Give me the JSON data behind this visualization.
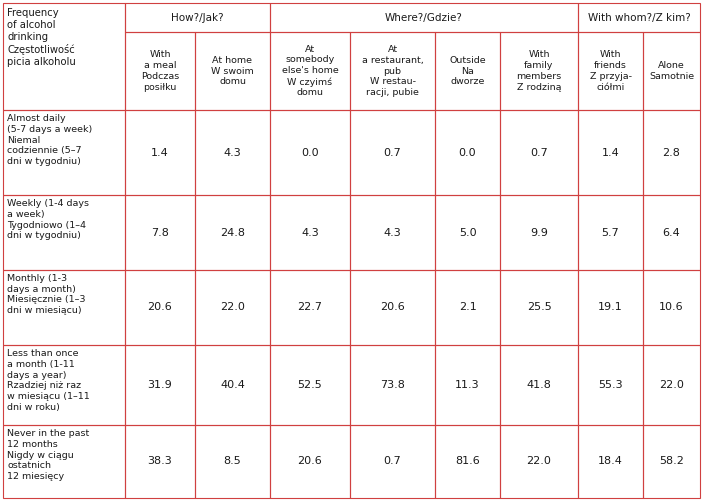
{
  "col_group_labels": [
    "How?/Jak?",
    "Where?/Gdzie?",
    "With whom?/Z kim?"
  ],
  "col_group_spans": [
    2,
    4,
    3
  ],
  "col_headers": [
    "With\na meal\nPodczas\nposiłku",
    "At home\nW swoim\ndomu",
    "At\nsomebody\nelse's home\nW czyimś\ndomu",
    "At\na restaurant,\npub\nW restau-\nracji, pubie",
    "Outside\nNa\ndworze",
    "With\nfamily\nmembers\nZ rodziną",
    "With\nfriends\nZ przyja-\nciółmi",
    "Alone\nSamotnie"
  ],
  "row_header_label": "Frequency\nof alcohol\ndrinking\nCzęstotliwość\npicia alkoholu",
  "row_headers": [
    "Almost daily\n(5-7 days a week)\nNiemal\ncodziennie (5–7\ndni w tygodniu)",
    "Weekly (1-4 days\na week)\nTygodniowo (1–4\ndni w tygodniu)",
    "Monthly (1-3\ndays a month)\nMiesięcznie (1–3\ndni w miesiącu)",
    "Less than once\na month (1-11\ndays a year)\nRzadziej niż raz\nw miesiącu (1–11\ndni w roku)",
    "Never in the past\n12 months\nNigdy w ciągu\nostatnich\n12 miesięcy"
  ],
  "data": [
    [
      "1.4",
      "4.3",
      "0.0",
      "0.7",
      "0.0",
      "0.7",
      "1.4",
      "2.8"
    ],
    [
      "7.8",
      "24.8",
      "4.3",
      "4.3",
      "5.0",
      "9.9",
      "5.7",
      "6.4"
    ],
    [
      "20.6",
      "22.0",
      "22.7",
      "20.6",
      "2.1",
      "25.5",
      "19.1",
      "10.6"
    ],
    [
      "31.9",
      "40.4",
      "52.5",
      "73.8",
      "11.3",
      "41.8",
      "55.3",
      "22.0"
    ],
    [
      "38.3",
      "8.5",
      "20.6",
      "0.7",
      "81.6",
      "22.0",
      "18.4",
      "58.2"
    ]
  ],
  "border_color": "#d04040",
  "bg_color": "#ffffff",
  "text_color": "#1a1a1a",
  "num_color": "#1a1a1a"
}
